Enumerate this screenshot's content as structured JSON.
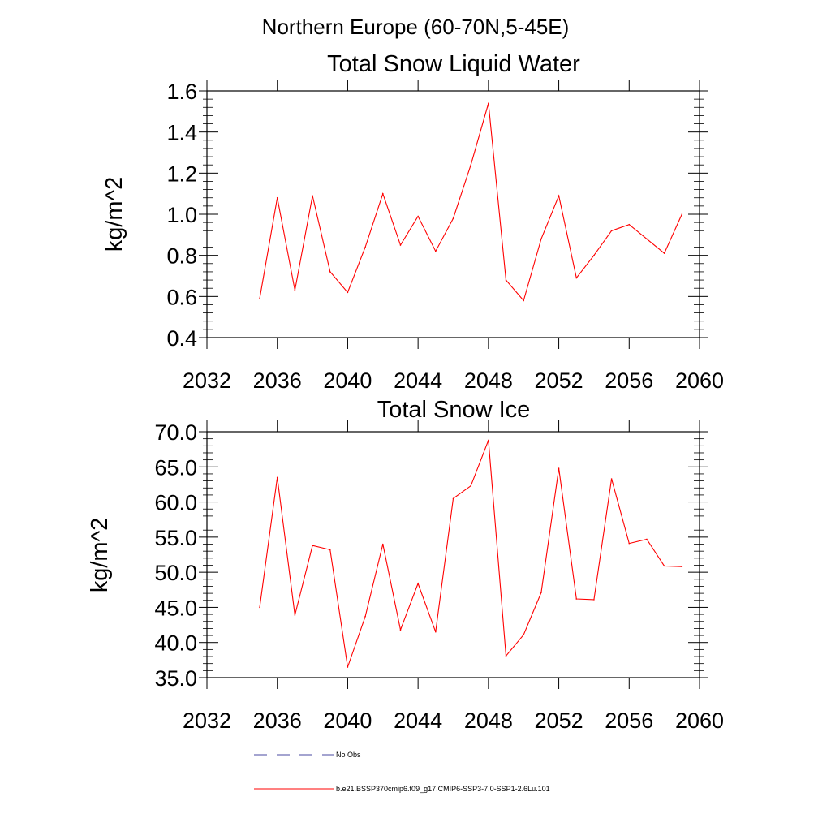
{
  "figure": {
    "suptitle": "Northern Europe (60-70N,5-45E)",
    "line_color": "#ff0000",
    "obs_color": "#4a4aa0"
  },
  "legend": {
    "placement": "bottom",
    "entries": [
      {
        "label": "No Obs",
        "style": "dashed",
        "color": "#4a4aa0"
      },
      {
        "label": "b.e21.BSSP370cmip6.f09_g17.CMIP6-SSP3-7.0-SSP1-2.6Lu.101",
        "style": "solid",
        "color": "#ff0000"
      }
    ]
  },
  "chart_data": [
    {
      "type": "line",
      "title": "Total Snow Liquid Water",
      "xlabel": "",
      "ylabel": "kg/m^2",
      "xlim": [
        2032,
        2060
      ],
      "ylim": [
        0.4,
        1.6
      ],
      "xticks": [
        2032,
        2036,
        2040,
        2044,
        2048,
        2052,
        2056,
        2060
      ],
      "xtick_labels": [
        "2032",
        "2036",
        "2040",
        "2044",
        "2048",
        "2052",
        "2056",
        "2060"
      ],
      "yticks": [
        0.4,
        0.6,
        0.8,
        1.0,
        1.2,
        1.4,
        1.6
      ],
      "ytick_labels": [
        "0.4",
        "0.6",
        "0.8",
        "1.0",
        "1.2",
        "1.4",
        "1.6"
      ],
      "grid": false,
      "series": [
        {
          "color": "#ff0000",
          "x": [
            2035,
            2036,
            2037,
            2038,
            2039,
            2040,
            2041,
            2042,
            2043,
            2044,
            2045,
            2046,
            2047,
            2048,
            2049,
            2050,
            2051,
            2052,
            2053,
            2054,
            2055,
            2056,
            2057,
            2058,
            2059
          ],
          "y": [
            0.59,
            1.08,
            0.63,
            1.09,
            0.72,
            0.62,
            0.84,
            1.1,
            0.85,
            0.99,
            0.82,
            0.98,
            1.24,
            1.54,
            0.68,
            0.58,
            0.88,
            1.09,
            0.69,
            0.8,
            0.92,
            0.95,
            0.88,
            0.81,
            1.0
          ]
        }
      ]
    },
    {
      "type": "line",
      "title": "Total Snow Ice",
      "xlabel": "",
      "ylabel": "kg/m^2",
      "xlim": [
        2032,
        2060
      ],
      "ylim": [
        35.0,
        70.0
      ],
      "xticks": [
        2032,
        2036,
        2040,
        2044,
        2048,
        2052,
        2056,
        2060
      ],
      "xtick_labels": [
        "2032",
        "2036",
        "2040",
        "2044",
        "2048",
        "2052",
        "2056",
        "2060"
      ],
      "yticks": [
        35,
        40,
        45,
        50,
        55,
        60,
        65,
        70
      ],
      "ytick_labels": [
        "35.0",
        "40.0",
        "45.0",
        "50.0",
        "55.0",
        "60.0",
        "65.0",
        "70.0"
      ],
      "grid": false,
      "series": [
        {
          "color": "#ff0000",
          "x": [
            2035,
            2036,
            2037,
            2038,
            2039,
            2040,
            2041,
            2042,
            2043,
            2044,
            2045,
            2046,
            2047,
            2048,
            2049,
            2050,
            2051,
            2052,
            2053,
            2054,
            2055,
            2056,
            2057,
            2058,
            2059
          ],
          "y": [
            45.0,
            63.5,
            43.9,
            53.8,
            53.2,
            36.5,
            43.7,
            54.0,
            41.8,
            48.4,
            41.5,
            60.5,
            62.3,
            68.8,
            38.1,
            41.1,
            47.1,
            64.8,
            46.2,
            46.1,
            63.3,
            54.1,
            54.7,
            50.9,
            50.8
          ]
        }
      ]
    }
  ]
}
